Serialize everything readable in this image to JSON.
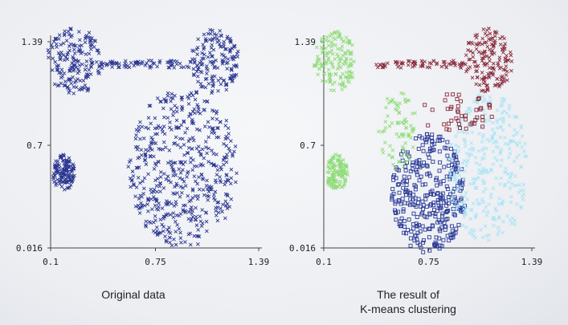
{
  "chart_data": [
    {
      "type": "scatter",
      "caption": "Original data",
      "xticks": [
        "0.1",
        "0.75",
        "1.39"
      ],
      "yticks": [
        "1.39",
        "0.7",
        "0.016"
      ],
      "xlim": [
        0.1,
        1.39
      ],
      "ylim": [
        0.016,
        1.39
      ],
      "series": [
        {
          "marker": "x",
          "color": "#2a3590",
          "clusters": [
            {
              "shape": "circle",
              "center": [
                0.92,
                0.55
              ],
              "radius": [
                0.34,
                0.53
              ],
              "count": 520
            },
            {
              "shape": "circle",
              "center": [
                0.18,
                0.52
              ],
              "radius": [
                0.07,
                0.12
              ],
              "count": 130
            },
            {
              "shape": "circle",
              "center": [
                0.25,
                1.26
              ],
              "radius": [
                0.18,
                0.22
              ],
              "count": 180
            },
            {
              "shape": "circle",
              "center": [
                1.12,
                1.26
              ],
              "radius": [
                0.15,
                0.22
              ],
              "count": 160
            },
            {
              "shape": "band",
              "from": [
                0.42,
                1.24
              ],
              "to": [
                0.98,
                1.24
              ],
              "thickness": 0.05,
              "count": 70
            }
          ]
        }
      ]
    },
    {
      "type": "scatter",
      "caption": [
        "The result of",
        "K-means clustering"
      ],
      "xticks": [
        "0.1",
        "0.75",
        "1.39"
      ],
      "yticks": [
        "1.39",
        "0.7",
        "0.016"
      ],
      "xlim": [
        0.1,
        1.39
      ],
      "ylim": [
        0.016,
        1.39
      ],
      "series": [
        {
          "marker": "square",
          "color": "#2c3b98",
          "clusters": [
            {
              "shape": "circle",
              "center": [
                0.75,
                0.38
              ],
              "radius": [
                0.23,
                0.4
              ],
              "count": 330
            }
          ]
        },
        {
          "marker": "x",
          "color": "#a8e4f4",
          "clusters": [
            {
              "shape": "circle",
              "center": [
                1.12,
                0.55
              ],
              "radius": [
                0.25,
                0.5
              ],
              "count": 320
            }
          ]
        },
        {
          "marker": "x",
          "color": "#8edc78",
          "clusters": [
            {
              "shape": "circle",
              "center": [
                0.17,
                1.26
              ],
              "radius": [
                0.13,
                0.2
              ],
              "count": 150
            },
            {
              "shape": "circle",
              "center": [
                0.18,
                0.52
              ],
              "radius": [
                0.07,
                0.12
              ],
              "count": 130
            },
            {
              "shape": "circle",
              "center": [
                0.56,
                0.8
              ],
              "radius": [
                0.12,
                0.26
              ],
              "count": 80
            }
          ]
        },
        {
          "marker": "x",
          "color": "#8a2a3c",
          "clusters": [
            {
              "shape": "circle",
              "center": [
                1.12,
                1.26
              ],
              "radius": [
                0.15,
                0.22
              ],
              "count": 160
            },
            {
              "shape": "band",
              "from": [
                0.42,
                1.24
              ],
              "to": [
                0.98,
                1.24
              ],
              "thickness": 0.05,
              "count": 70
            }
          ]
        },
        {
          "marker": "square",
          "color": "#8a2a3c",
          "clusters": [
            {
              "shape": "circle",
              "center": [
                0.92,
                0.92
              ],
              "radius": [
                0.24,
                0.14
              ],
              "count": 45
            }
          ]
        }
      ]
    }
  ]
}
